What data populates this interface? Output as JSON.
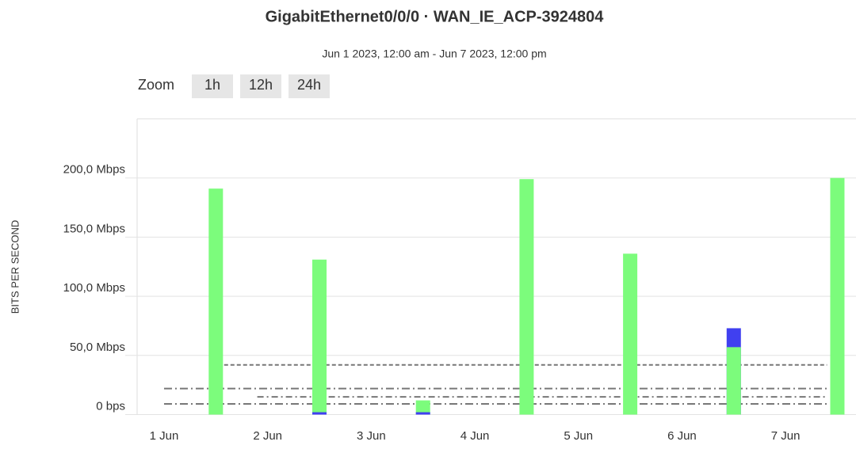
{
  "chart_data": {
    "type": "bar",
    "title": "GigabitEthernet0/0/0 · WAN_IE_ACP-3924804",
    "subtitle": "Jun 1 2023, 12:00 am - Jun 7 2023, 12:00 pm",
    "zoom": {
      "label": "Zoom",
      "buttons": [
        "1h",
        "12h",
        "24h"
      ]
    },
    "y_label": "BITS PER SECOND",
    "x": [
      0.5,
      1.5,
      2.5,
      3.5,
      4.5,
      5.5,
      6.5
    ],
    "xlim": [
      -0.26,
      6.68
    ],
    "xticks": [
      {
        "value": 0,
        "label": "1 Jun"
      },
      {
        "value": 1,
        "label": "2 Jun"
      },
      {
        "value": 2,
        "label": "3 Jun"
      },
      {
        "value": 3,
        "label": "4 Jun"
      },
      {
        "value": 4,
        "label": "5 Jun"
      },
      {
        "value": 5,
        "label": "6 Jun"
      },
      {
        "value": 6,
        "label": "7 Jun"
      }
    ],
    "ylim": [
      0,
      250
    ],
    "yticks": [
      {
        "value": 0,
        "label": "0 bps"
      },
      {
        "value": 50,
        "label": "50,0 Mbps"
      },
      {
        "value": 100,
        "label": "100,0 Mbps"
      },
      {
        "value": 150,
        "label": "150,0 Mbps"
      },
      {
        "value": 200,
        "label": "200,0 Mbps"
      }
    ],
    "grid": true,
    "series": [
      {
        "color": "#7cfc7c",
        "values": [
          191,
          131,
          12,
          199,
          136,
          57,
          200
        ]
      },
      {
        "color": "#4040f0",
        "values": [
          0,
          2,
          2,
          0,
          0,
          73,
          0
        ]
      }
    ],
    "reference_lines": [
      {
        "value": 42,
        "dash": "5,3",
        "from": 0.58
      },
      {
        "value": 22,
        "dash": "10,4,2,4",
        "from": 0
      },
      {
        "value": 15,
        "dash": "8,4,2,4",
        "from": 0.9
      },
      {
        "value": 9,
        "dash": "10,4,2,4",
        "from": 0
      }
    ]
  }
}
